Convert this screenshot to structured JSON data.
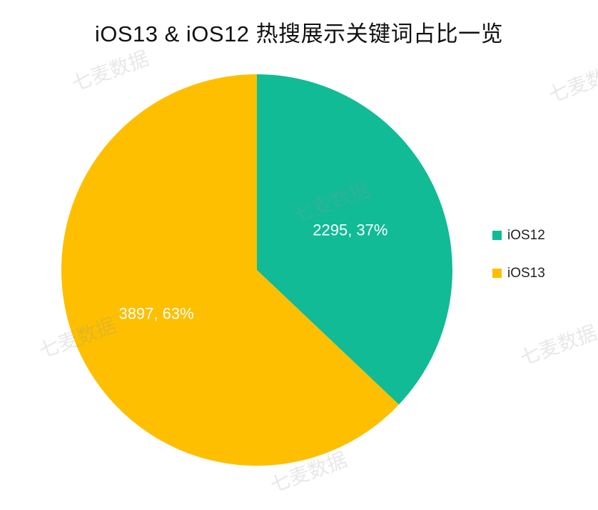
{
  "chart_data": {
    "type": "pie",
    "title": "iOS13 & iOS12 热搜展示关键词占比一览",
    "categories": [
      "iOS12",
      "iOS13"
    ],
    "values": [
      2295,
      3897
    ],
    "percentages": [
      37,
      63
    ],
    "data_labels": [
      "2295, 37%",
      "3897, 63%"
    ],
    "colors": [
      "#10bb96",
      "#fdbf00"
    ],
    "legend_position": "right",
    "start_angle": "12 o'clock, clockwise"
  },
  "watermark": "七麦数据"
}
